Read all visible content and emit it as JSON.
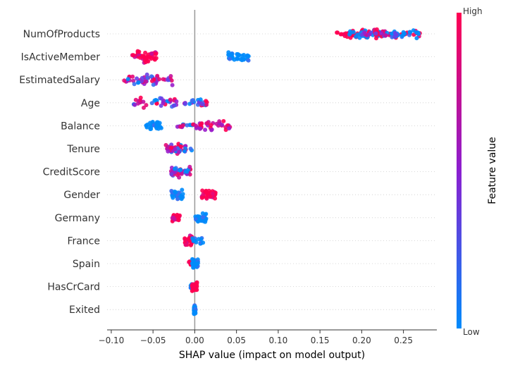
{
  "chart_data": {
    "type": "scatter",
    "subtype": "shap-beeswarm",
    "xlabel": "SHAP value (impact on model output)",
    "xlim": [
      -0.105,
      0.29
    ],
    "xticks": [
      -0.1,
      -0.05,
      0.0,
      0.05,
      0.1,
      0.15,
      0.2,
      0.25
    ],
    "xtick_labels": [
      "−0.10",
      "−0.05",
      "0.00",
      "0.05",
      "0.10",
      "0.15",
      "0.20",
      "0.25"
    ],
    "features": [
      {
        "name": "NumOfProducts",
        "clusters": [
          {
            "min": 0.17,
            "max": 0.215,
            "n": 34,
            "color": "high"
          },
          {
            "min": 0.185,
            "max": 0.225,
            "n": 30,
            "color": "low"
          },
          {
            "min": 0.215,
            "max": 0.27,
            "n": 34,
            "color": "high"
          },
          {
            "min": 0.22,
            "max": 0.27,
            "n": 30,
            "color": "low"
          },
          {
            "min": 0.195,
            "max": 0.245,
            "n": 14,
            "color": "mid"
          }
        ]
      },
      {
        "name": "IsActiveMember",
        "clusters": [
          {
            "min": -0.075,
            "max": -0.045,
            "n": 45,
            "color": "high"
          },
          {
            "min": 0.04,
            "max": 0.065,
            "n": 35,
            "color": "low"
          }
        ]
      },
      {
        "name": "EstimatedSalary",
        "clusters": [
          {
            "min": -0.085,
            "max": -0.025,
            "n": 50,
            "color": "mixed"
          }
        ]
      },
      {
        "name": "Age",
        "clusters": [
          {
            "min": -0.075,
            "max": -0.02,
            "n": 40,
            "color": "mixed"
          },
          {
            "min": -0.015,
            "max": 0.015,
            "n": 24,
            "color": "mixed"
          }
        ]
      },
      {
        "name": "Balance",
        "clusters": [
          {
            "min": -0.06,
            "max": -0.04,
            "n": 28,
            "color": "low"
          },
          {
            "min": -0.025,
            "max": 0.0,
            "n": 14,
            "color": "mixed"
          },
          {
            "min": 0.0,
            "max": 0.045,
            "n": 36,
            "color": "highmixed"
          }
        ]
      },
      {
        "name": "Tenure",
        "clusters": [
          {
            "min": -0.035,
            "max": -0.01,
            "n": 44,
            "color": "mixed"
          },
          {
            "min": -0.005,
            "max": 0.0,
            "n": 2,
            "color": "low"
          }
        ]
      },
      {
        "name": "CreditScore",
        "clusters": [
          {
            "min": -0.03,
            "max": -0.005,
            "n": 46,
            "color": "mixed"
          }
        ]
      },
      {
        "name": "Gender",
        "clusters": [
          {
            "min": -0.028,
            "max": -0.012,
            "n": 34,
            "color": "low"
          },
          {
            "min": 0.008,
            "max": 0.025,
            "n": 34,
            "color": "high"
          }
        ]
      },
      {
        "name": "Germany",
        "clusters": [
          {
            "min": -0.028,
            "max": -0.018,
            "n": 20,
            "color": "high"
          },
          {
            "min": 0.0,
            "max": 0.015,
            "n": 34,
            "color": "low"
          }
        ]
      },
      {
        "name": "France",
        "clusters": [
          {
            "min": -0.012,
            "max": -0.002,
            "n": 36,
            "color": "high"
          },
          {
            "min": -0.003,
            "max": 0.01,
            "n": 14,
            "color": "low"
          }
        ]
      },
      {
        "name": "Spain",
        "clusters": [
          {
            "min": -0.01,
            "max": -0.004,
            "n": 6,
            "color": "high"
          },
          {
            "min": -0.003,
            "max": 0.004,
            "n": 40,
            "color": "low"
          }
        ]
      },
      {
        "name": "HasCrCard",
        "clusters": [
          {
            "min": -0.006,
            "max": -0.002,
            "n": 6,
            "color": "low"
          },
          {
            "min": -0.004,
            "max": 0.003,
            "n": 36,
            "color": "high"
          }
        ]
      },
      {
        "name": "Exited",
        "clusters": [
          {
            "min": -0.001,
            "max": 0.001,
            "n": 40,
            "color": "low"
          }
        ]
      }
    ],
    "colorbar": {
      "label": "Feature value",
      "high_label": "High",
      "low_label": "Low",
      "high_color": "#ff0052",
      "low_color": "#008bfb"
    },
    "zero_line": true,
    "row_gridlines": "dotted"
  }
}
